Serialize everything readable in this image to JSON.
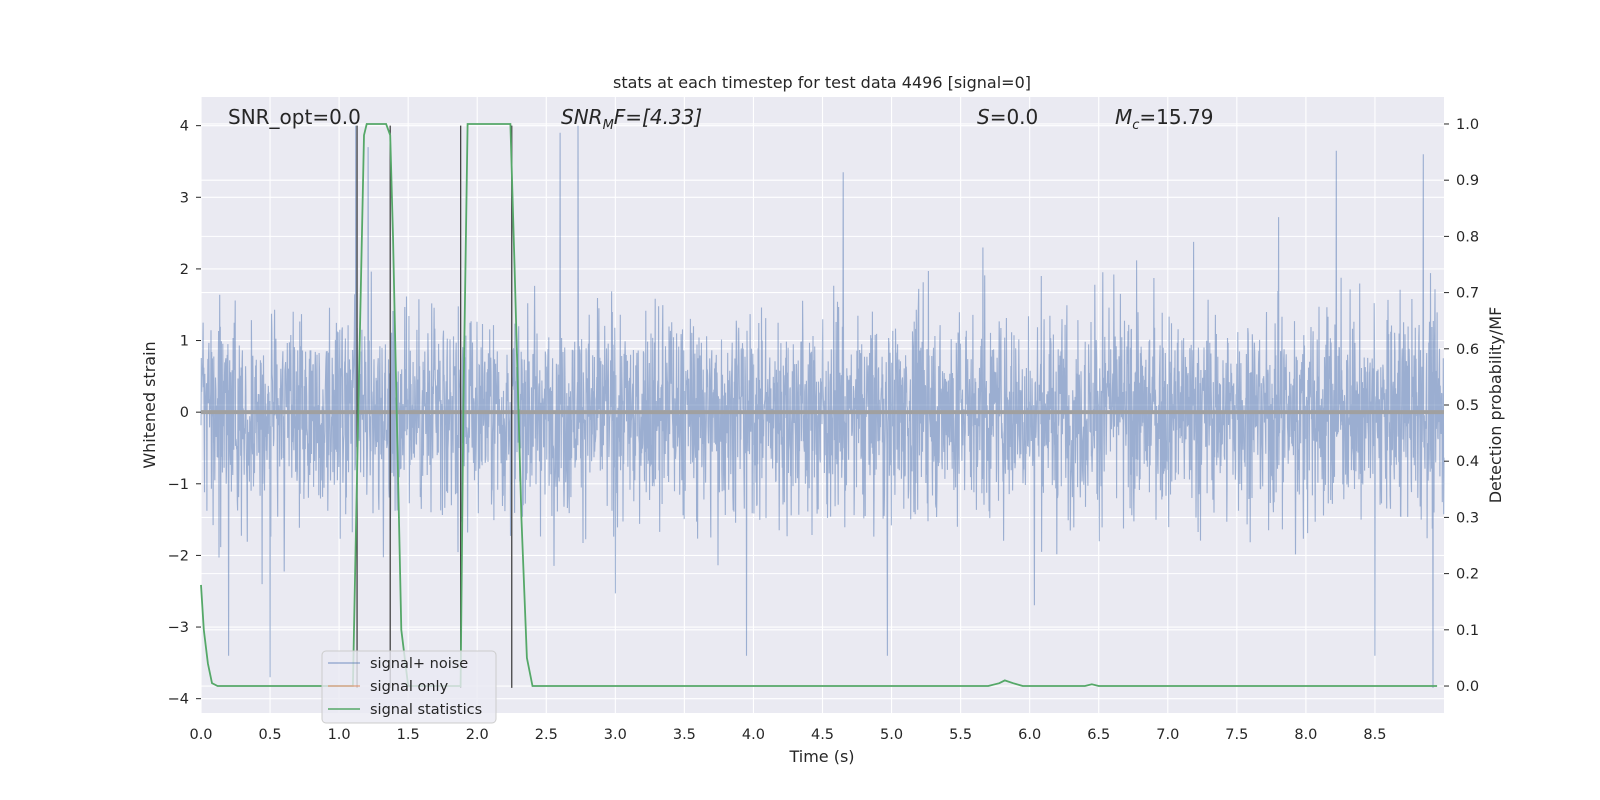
{
  "chart_data": {
    "type": "line",
    "title": "stats at each timestep for test data 4496 [signal=0]",
    "xlabel": "Time (s)",
    "ylabel": "Whitened strain",
    "y2label": "Detection probability/MF",
    "xlim": [
      0.0,
      9.0
    ],
    "ylim": [
      -4.2,
      4.4
    ],
    "y2lim": [
      -0.048,
      1.048
    ],
    "x_ticks": [
      "0.0",
      "0.5",
      "1.0",
      "1.5",
      "2.0",
      "2.5",
      "3.0",
      "3.5",
      "4.0",
      "4.5",
      "5.0",
      "5.5",
      "6.0",
      "6.5",
      "7.0",
      "7.5",
      "8.0",
      "8.5"
    ],
    "y_ticks": [
      "4",
      "3",
      "2",
      "1",
      "0",
      "−1",
      "−2",
      "−3",
      "−4"
    ],
    "y2_ticks": [
      "1.0",
      "0.9",
      "0.8",
      "0.7",
      "0.6",
      "0.5",
      "0.4",
      "0.3",
      "0.2",
      "0.1",
      "0.0"
    ],
    "grid": true,
    "legend_position": "lower-left",
    "annotations": {
      "snr_opt": "SNR_opt=0.0",
      "snr_mf_base": "SNR",
      "snr_mf_sub": "M",
      "snr_mf_rest": "F=[4.33]",
      "s_var": "S",
      "s_val": "=0.0",
      "mc_var": "M",
      "mc_sub": "c",
      "mc_val": "=15.79"
    },
    "series": [
      {
        "name": "signal+ noise",
        "color": "#4c72b0",
        "axis": "left",
        "noise_profile": {
          "x_range": [
            0.0,
            9.0
          ],
          "typical_band": [
            -1.5,
            1.65
          ],
          "peak_range": [
            -3.85,
            4.0
          ]
        },
        "spikes": [
          {
            "x": 1.12,
            "y": 4.0
          },
          {
            "x": 1.21,
            "y": 3.7
          },
          {
            "x": 2.73,
            "y": 4.0
          },
          {
            "x": 2.6,
            "y": 3.9
          },
          {
            "x": 4.65,
            "y": 3.35
          },
          {
            "x": 8.22,
            "y": 3.65
          },
          {
            "x": 8.85,
            "y": 3.6
          },
          {
            "x": 8.92,
            "y": -3.85
          },
          {
            "x": 0.2,
            "y": -3.4
          },
          {
            "x": 0.5,
            "y": -3.7
          },
          {
            "x": 4.97,
            "y": -3.4
          },
          {
            "x": 3.95,
            "y": -3.4
          },
          {
            "x": 8.5,
            "y": -3.4
          }
        ]
      },
      {
        "name": "signal only",
        "color": "#dd8452",
        "axis": "left",
        "x": [
          0.0,
          9.0
        ],
        "y": [
          0.0,
          0.0
        ]
      },
      {
        "name": "signal statistics",
        "color": "#55a868",
        "axis": "right",
        "x": [
          0.0,
          0.02,
          0.05,
          0.08,
          0.12,
          0.15,
          1.1,
          1.14,
          1.18,
          1.2,
          1.25,
          1.3,
          1.34,
          1.37,
          1.39,
          1.45,
          1.5,
          1.85,
          1.88,
          1.9,
          1.93,
          2.0,
          2.1,
          2.2,
          2.24,
          2.27,
          2.32,
          2.36,
          2.4,
          5.7,
          5.78,
          5.82,
          5.88,
          5.95,
          6.4,
          6.45,
          6.5,
          8.95
        ],
        "y": [
          0.18,
          0.1,
          0.04,
          0.005,
          0.0,
          0.0,
          0.0,
          0.5,
          0.98,
          1.0,
          1.0,
          1.0,
          1.0,
          0.98,
          0.8,
          0.1,
          0.0,
          0.0,
          0.0,
          0.5,
          1.0,
          1.0,
          1.0,
          1.0,
          1.0,
          0.75,
          0.3,
          0.05,
          0.0,
          0.0,
          0.005,
          0.01,
          0.005,
          0.0,
          0.0,
          0.003,
          0.0,
          0.0
        ]
      }
    ],
    "vertical_markers": [
      {
        "x": 1.13,
        "y": [
          4.0,
          -3.85
        ]
      },
      {
        "x": 1.37,
        "y": [
          4.0,
          -3.85
        ]
      },
      {
        "x": 1.88,
        "y": [
          4.0,
          -3.85
        ]
      },
      {
        "x": 2.25,
        "y": [
          4.0,
          -3.85
        ]
      }
    ]
  }
}
